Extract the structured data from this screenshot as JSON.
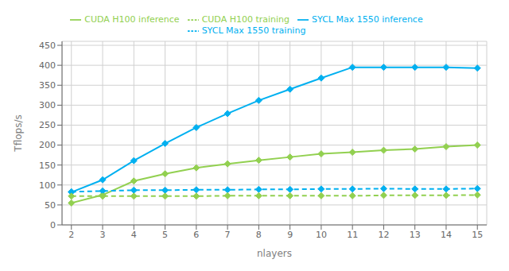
{
  "chart_data": {
    "type": "line",
    "x": [
      2,
      3,
      4,
      5,
      6,
      7,
      8,
      9,
      10,
      11,
      12,
      13,
      14,
      15
    ],
    "xlim": [
      1.7,
      15.3
    ],
    "xticks": [
      2,
      3,
      4,
      5,
      6,
      7,
      8,
      9,
      10,
      11,
      12,
      13,
      14,
      15
    ],
    "ylim": [
      0,
      460
    ],
    "yticks": [
      0,
      50,
      100,
      150,
      200,
      250,
      300,
      350,
      400,
      450
    ],
    "xlabel": "nlayers",
    "ylabel": "Tflops/s",
    "grid": true,
    "legend": "top",
    "series": [
      {
        "name": "SYCL Max 1550 inference",
        "color": "#00b0f0",
        "line_style": "solid",
        "marker": "diamond",
        "values": [
          82,
          113,
          161,
          204,
          244,
          279,
          312,
          340,
          368,
          395,
          395,
          395,
          395,
          393
        ]
      },
      {
        "name": "CUDA H100 inference",
        "color": "#92d050",
        "line_style": "solid",
        "marker": "diamond",
        "values": [
          55,
          75,
          110,
          128,
          143,
          153,
          162,
          170,
          178,
          182,
          187,
          190,
          196,
          200
        ]
      },
      {
        "name": "SYCL Max 1550 training",
        "color": "#00b0f0",
        "line_style": "dashed",
        "marker": "diamond",
        "values": [
          83,
          85,
          87,
          87,
          88,
          88,
          89,
          89,
          90,
          90,
          91,
          90,
          90,
          91
        ]
      },
      {
        "name": "CUDA H100 training",
        "color": "#92d050",
        "line_style": "dashed",
        "marker": "diamond",
        "values": [
          72,
          72,
          72,
          72,
          72,
          73,
          73,
          73,
          73,
          73,
          74,
          74,
          74,
          75
        ]
      }
    ]
  }
}
